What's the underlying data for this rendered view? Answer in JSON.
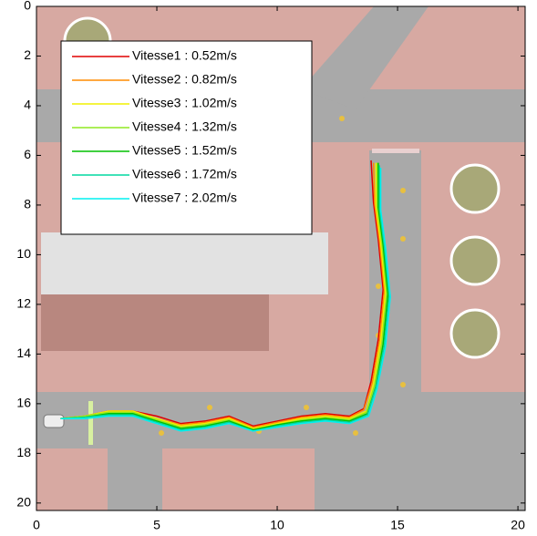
{
  "chart_data": {
    "type": "line",
    "xlim": [
      0,
      20.3
    ],
    "ylim": [
      20.3,
      0
    ],
    "xticks": [
      0,
      5,
      10,
      15,
      20
    ],
    "yticks": [
      0,
      2,
      4,
      6,
      8,
      10,
      12,
      14,
      16,
      18,
      20
    ],
    "grid": false,
    "legend": "upper left",
    "series": [
      {
        "name": "Vitesse1 : 0.52m/s",
        "color": "#e00000",
        "x": [
          1,
          2,
          3,
          4,
          5,
          6,
          7,
          8,
          9,
          10,
          11,
          12,
          13,
          13.6,
          13.9,
          14.2,
          14.4,
          14.2,
          14.0,
          13.9
        ],
        "values": [
          16.6,
          16.5,
          16.3,
          16.3,
          16.5,
          16.8,
          16.7,
          16.5,
          16.9,
          16.7,
          16.5,
          16.4,
          16.5,
          16.2,
          15.1,
          13.4,
          11.4,
          9.4,
          7.9,
          6.2
        ]
      },
      {
        "name": "Vitesse2 : 0.82m/s",
        "color": "#ff8c00",
        "x": [
          1,
          2,
          3,
          4,
          5,
          6,
          7,
          8,
          9,
          10,
          11,
          12,
          13,
          13.6,
          13.95,
          14.25,
          14.45,
          14.25,
          14.05,
          14.0
        ],
        "values": [
          16.6,
          16.5,
          16.3,
          16.3,
          16.6,
          16.85,
          16.75,
          16.55,
          16.95,
          16.75,
          16.55,
          16.45,
          16.55,
          16.25,
          15.15,
          13.45,
          11.45,
          9.45,
          7.95,
          6.3
        ]
      },
      {
        "name": "Vitesse3 : 1.02m/s",
        "color": "#f0f000",
        "x": [
          1,
          2,
          3,
          4,
          5,
          6,
          7,
          8,
          9,
          10,
          11,
          12,
          13,
          13.7,
          14.0,
          14.3,
          14.5,
          14.3,
          14.1,
          14.1
        ],
        "values": [
          16.6,
          16.5,
          16.3,
          16.3,
          16.6,
          16.9,
          16.8,
          16.6,
          17.0,
          16.8,
          16.6,
          16.5,
          16.6,
          16.3,
          15.2,
          13.5,
          11.5,
          9.5,
          8.0,
          6.3
        ]
      },
      {
        "name": "Vitesse4 : 1.32m/s",
        "color": "#90e820",
        "x": [
          1,
          2,
          3,
          4,
          5,
          6,
          7,
          8,
          9,
          10,
          11,
          12,
          13,
          13.7,
          14.05,
          14.35,
          14.55,
          14.35,
          14.15,
          14.15
        ],
        "values": [
          16.6,
          16.5,
          16.35,
          16.35,
          16.65,
          16.95,
          16.85,
          16.65,
          17.05,
          16.85,
          16.65,
          16.55,
          16.65,
          16.35,
          15.25,
          13.55,
          11.55,
          9.55,
          8.05,
          6.3
        ]
      },
      {
        "name": "Vitesse5 : 1.52m/s",
        "color": "#00c000",
        "x": [
          1,
          2,
          3,
          4,
          5,
          6,
          7,
          8,
          9,
          10,
          11,
          12,
          13,
          13.75,
          14.1,
          14.4,
          14.6,
          14.4,
          14.2,
          14.2
        ],
        "values": [
          16.6,
          16.55,
          16.4,
          16.4,
          16.7,
          17.0,
          16.9,
          16.7,
          17.05,
          16.85,
          16.7,
          16.6,
          16.7,
          16.4,
          15.3,
          13.6,
          11.6,
          9.6,
          8.1,
          6.3
        ]
      },
      {
        "name": "Vitesse6 : 1.72m/s",
        "color": "#00d8a0",
        "x": [
          1,
          2,
          3,
          4,
          5,
          6,
          7,
          8,
          9,
          10,
          11,
          12,
          13,
          13.75,
          14.1,
          14.45,
          14.65,
          14.45,
          14.25,
          14.25
        ],
        "values": [
          16.6,
          16.55,
          16.45,
          16.45,
          16.75,
          17.05,
          16.95,
          16.75,
          17.1,
          16.9,
          16.75,
          16.65,
          16.75,
          16.45,
          15.35,
          13.65,
          11.65,
          9.65,
          8.15,
          6.4
        ]
      },
      {
        "name": "Vitesse7 : 2.02m/s",
        "color": "#00f0f0",
        "x": [
          1,
          2,
          3,
          4,
          5,
          6,
          7,
          8,
          9,
          10,
          11,
          12,
          13,
          13.8,
          14.15,
          14.5,
          14.7,
          14.5,
          14.3,
          14.3
        ],
        "values": [
          16.6,
          16.6,
          16.5,
          16.5,
          16.8,
          17.1,
          17.0,
          16.8,
          17.1,
          16.95,
          16.8,
          16.7,
          16.8,
          16.5,
          15.4,
          13.7,
          11.7,
          9.7,
          8.2,
          6.5
        ]
      }
    ]
  }
}
